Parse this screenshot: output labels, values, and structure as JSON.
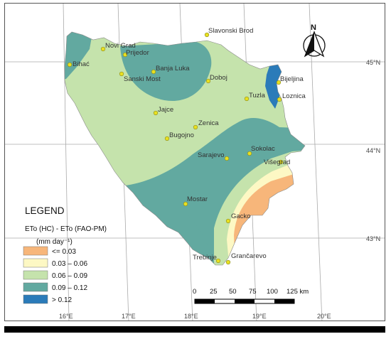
{
  "cities": [
    {
      "name": "Slavonski Brod"
    },
    {
      "name": "Novi Grad"
    },
    {
      "name": "Prijedor"
    },
    {
      "name": "Bihać"
    },
    {
      "name": "Banja Luka"
    },
    {
      "name": "Sanski Most"
    },
    {
      "name": "Doboj"
    },
    {
      "name": "Bijeljina"
    },
    {
      "name": "Loznica"
    },
    {
      "name": "Tuzla"
    },
    {
      "name": "Jajce"
    },
    {
      "name": "Zenica"
    },
    {
      "name": "Bugojno"
    },
    {
      "name": "Sarajevo"
    },
    {
      "name": "Sokolac"
    },
    {
      "name": "Višegrad"
    },
    {
      "name": "Mostar"
    },
    {
      "name": "Gacko"
    },
    {
      "name": "Trebinje"
    },
    {
      "name": "Grančarevo"
    }
  ],
  "latitude_labels": [
    "45°N",
    "44°N",
    "43°N"
  ],
  "longitude_labels": [
    "16°E",
    "17°E",
    "18°E",
    "19°E",
    "20°E"
  ],
  "north_arrow": {
    "label": "N",
    "icon": "north-arrow-icon"
  },
  "legend": {
    "title": "LEGEND",
    "variable_line1": "ETo (HC) -  ETo (FAO-PM)",
    "unit_line": "(mm day⁻¹)",
    "classes": [
      {
        "label": "<= 0.03",
        "color": "#f7b67a"
      },
      {
        "label": "0.03 – 0.06",
        "color": "#fdf8c4"
      },
      {
        "label": "0.06 – 0.09",
        "color": "#c5e3ac"
      },
      {
        "label": "0.09 – 0.12",
        "color": "#62a9a0"
      },
      {
        "label": "> 0.12",
        "color": "#2b7bb9"
      }
    ]
  },
  "scale_bar": {
    "ticks": [
      "0",
      "25",
      "50",
      "75",
      "100",
      "125 km"
    ]
  }
}
